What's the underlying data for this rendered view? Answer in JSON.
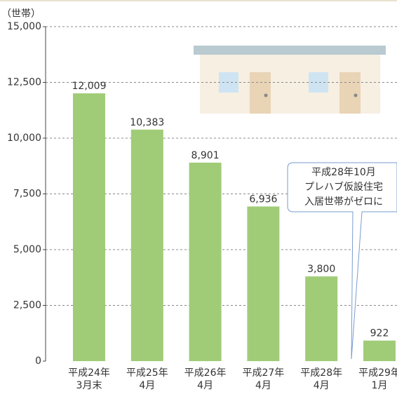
{
  "chart_data": {
    "type": "bar",
    "y_label": "（世帯）",
    "categories": [
      [
        "平成24年",
        "3月末"
      ],
      [
        "平成25年",
        "4月"
      ],
      [
        "平成26年",
        "4月"
      ],
      [
        "平成27年",
        "4月"
      ],
      [
        "平成28年",
        "4月"
      ],
      [
        "平成29年",
        "1月"
      ]
    ],
    "values": [
      12009,
      10383,
      8901,
      6936,
      3800,
      922
    ],
    "value_labels": [
      "12,009",
      "10,383",
      "8,901",
      "6,936",
      "3,800",
      "922"
    ],
    "color": "#a0cc78",
    "ylim": [
      0,
      15000
    ],
    "yticks": [
      0,
      {
        "value": 2500,
        "label": "2,500"
      },
      {
        "value": 5000,
        "label": "5,000"
      },
      {
        "value": 7500,
        "label": "7,500"
      },
      {
        "value": 10000,
        "label": "10,000"
      },
      {
        "value": 12500,
        "label": "12,500"
      },
      {
        "value": 15000,
        "label": "15,000"
      }
    ],
    "grid": true,
    "annotation": [
      "平成28年10月",
      "プレハブ仮設住宅",
      "入居世帯がゼロに"
    ]
  }
}
